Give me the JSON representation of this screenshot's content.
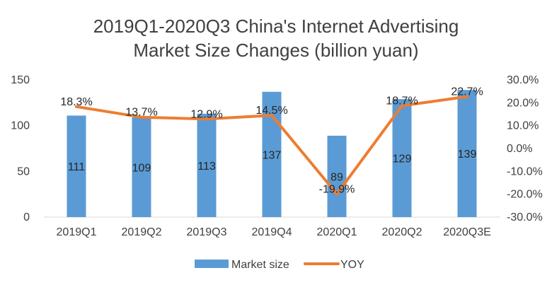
{
  "chart_data": {
    "type": "bar",
    "title_line1": "2019Q1-2020Q3 China's Internet Advertising",
    "title_line2": "Market Size Changes (billion yuan)",
    "categories": [
      "2019Q1",
      "2019Q2",
      "2019Q3",
      "2019Q4",
      "2020Q1",
      "2020Q2",
      "2020Q3E"
    ],
    "series": [
      {
        "name": "Market size",
        "type": "bar",
        "axis": "left",
        "color": "#5B9BD5",
        "values": [
          111,
          109,
          113,
          137,
          89,
          129,
          139
        ],
        "labels": [
          "111",
          "109",
          "113",
          "137",
          "89",
          "129",
          "139"
        ]
      },
      {
        "name": "YOY",
        "type": "line",
        "axis": "right",
        "color": "#ED7D31",
        "values": [
          18.3,
          13.7,
          12.9,
          14.5,
          -19.9,
          18.7,
          22.7
        ],
        "labels": [
          "18.3%",
          "13.7%",
          "12.9%",
          "14.5%",
          "-19.9%",
          "18.7%",
          "22.7%"
        ]
      }
    ],
    "y_left": {
      "min": 0,
      "max": 150,
      "ticks": [
        0,
        50,
        100,
        150
      ],
      "tick_labels": [
        "0",
        "50",
        "100",
        "150"
      ]
    },
    "y_right": {
      "min": -30,
      "max": 30,
      "ticks": [
        30,
        20,
        10,
        0,
        -10,
        -20,
        -30
      ],
      "tick_labels": [
        "30.0%",
        "20.0%",
        "10.0%",
        "0.0%",
        "-10.0%",
        "-20.0%",
        "-30.0%"
      ]
    },
    "grid": false,
    "legend": "bottom"
  }
}
